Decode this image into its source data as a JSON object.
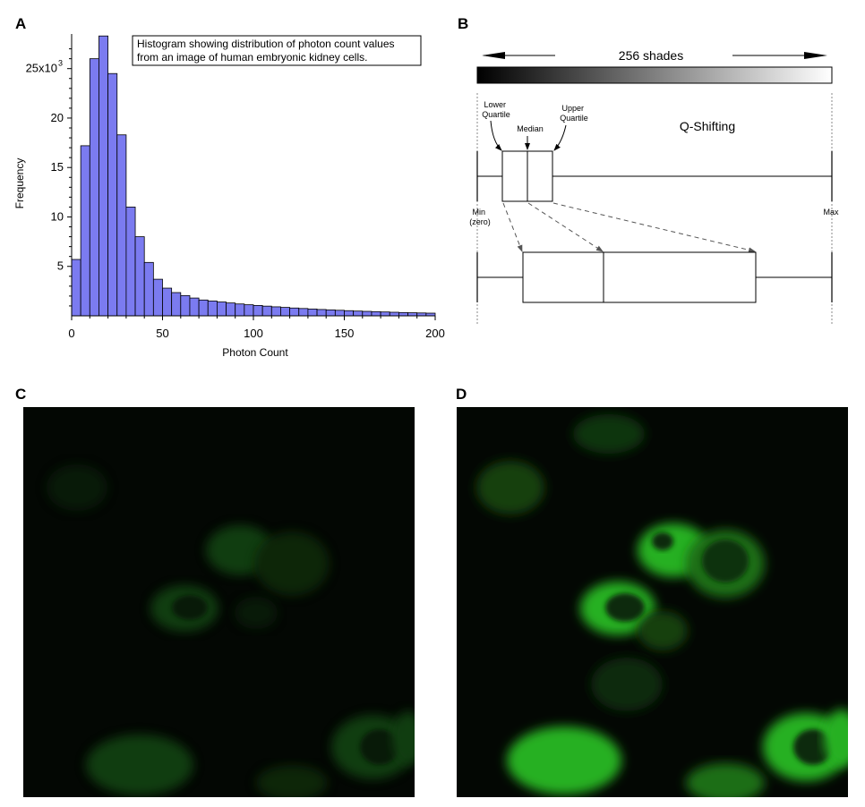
{
  "panels": {
    "a": "A",
    "b": "B",
    "c": "C",
    "d": "D"
  },
  "chart_data": {
    "type": "bar",
    "annotation": "Histogram showing distribution of photon count values\nfrom an image of human embryonic kidney cells.",
    "xlabel": "Photon Count",
    "ylabel": "Frequency",
    "xlim": [
      0,
      200
    ],
    "ylim": [
      0,
      28500
    ],
    "x_ticks": [
      "0",
      "50",
      "100",
      "150",
      "200"
    ],
    "y_ticks": [
      "5",
      "10",
      "15",
      "20"
    ],
    "y_top_tick": "25x10",
    "y_top_tick_exp": "3",
    "bar_color": "#7b7bf0",
    "bin_width": 5,
    "bin_starts": [
      0,
      5,
      10,
      15,
      20,
      25,
      30,
      35,
      40,
      45,
      50,
      55,
      60,
      65,
      70,
      75,
      80,
      85,
      90,
      95,
      100,
      105,
      110,
      115,
      120,
      125,
      130,
      135,
      140,
      145,
      150,
      155,
      160,
      165,
      170,
      175,
      180,
      185,
      190,
      195
    ],
    "values": [
      5700,
      17200,
      26000,
      28300,
      24500,
      18300,
      11000,
      8000,
      5400,
      3700,
      2800,
      2350,
      2050,
      1800,
      1600,
      1500,
      1400,
      1300,
      1200,
      1120,
      1050,
      980,
      910,
      850,
      790,
      740,
      690,
      640,
      600,
      560,
      520,
      480,
      450,
      420,
      390,
      360,
      330,
      310,
      290,
      270
    ]
  },
  "diagram": {
    "shades_label": "256 shades",
    "title": "Q-Shifting",
    "lower_quartile": [
      "Lower",
      "Quartile"
    ],
    "median": "Median",
    "upper_quartile": [
      "Upper",
      "Quartile"
    ],
    "min_label": [
      "Min",
      "(zero)"
    ],
    "max_label": "Max"
  },
  "colors": {
    "micrograph_bg": "#030703",
    "cell_green": "#23a81e"
  }
}
